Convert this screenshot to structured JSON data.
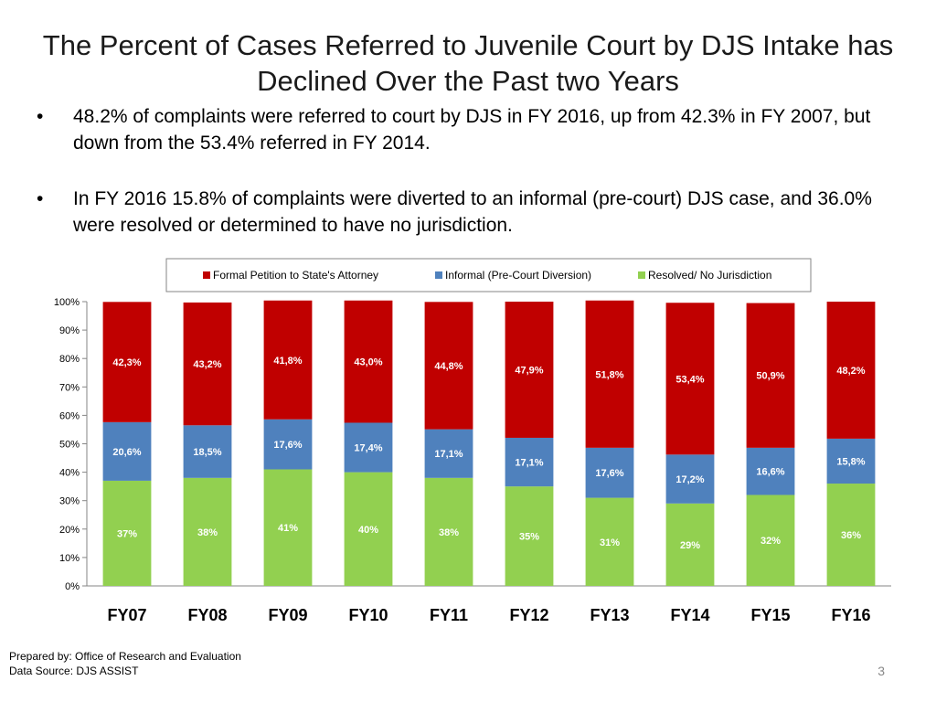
{
  "slide": {
    "title": "The Percent of Cases Referred to Juvenile Court by DJS Intake has Declined Over the Past two Years",
    "bullets": [
      "48.2% of complaints were referred to court by DJS in FY 2016, up from 42.3% in FY 2007, but down from the 53.4% referred in FY 2014.",
      "In FY 2016 15.8% of complaints were diverted to an informal (pre-court) DJS case, and 36.0% were resolved or determined to have no jurisdiction."
    ],
    "bullet_glyph": "•",
    "footer_line1": "Prepared by: Office of Research and Evaluation",
    "footer_line2": "Data Source: DJS ASSIST",
    "page_number": "3"
  },
  "chart_data": {
    "type": "bar",
    "stacked": true,
    "percent": true,
    "categories": [
      "FY07",
      "FY08",
      "FY09",
      "FY10",
      "FY11",
      "FY12",
      "FY13",
      "FY14",
      "FY15",
      "FY16"
    ],
    "series": [
      {
        "name": "Resolved/ No Jurisdiction",
        "color": "#92d050",
        "values": [
          37,
          38,
          41,
          40,
          38,
          35,
          31,
          29,
          32,
          36
        ],
        "labels": [
          "37%",
          "38%",
          "41%",
          "40%",
          "38%",
          "35%",
          "31%",
          "29%",
          "32%",
          "36%"
        ]
      },
      {
        "name": "Informal (Pre-Court Diversion)",
        "color": "#4f81bd",
        "values": [
          20.6,
          18.5,
          17.6,
          17.4,
          17.1,
          17.1,
          17.6,
          17.2,
          16.6,
          15.8
        ],
        "labels": [
          "20,6%",
          "18,5%",
          "17,6%",
          "17,4%",
          "17,1%",
          "17,1%",
          "17,6%",
          "17,2%",
          "16,6%",
          "15,8%"
        ]
      },
      {
        "name": "Formal Petition to State's Attorney",
        "color": "#c00000",
        "values": [
          42.3,
          43.2,
          41.8,
          43.0,
          44.8,
          47.9,
          51.8,
          53.4,
          50.9,
          48.2
        ],
        "labels": [
          "42,3%",
          "43,2%",
          "41,8%",
          "43,0%",
          "44,8%",
          "47,9%",
          "51,8%",
          "53,4%",
          "50,9%",
          "48,2%"
        ]
      }
    ],
    "legend_order": [
      2,
      1,
      0
    ],
    "legend_position": "top",
    "ylim": [
      0,
      100
    ],
    "yticks": [
      0,
      10,
      20,
      30,
      40,
      50,
      60,
      70,
      80,
      90,
      100
    ],
    "ytick_labels": [
      "0%",
      "10%",
      "20%",
      "30%",
      "40%",
      "50%",
      "60%",
      "70%",
      "80%",
      "90%",
      "100%"
    ]
  }
}
